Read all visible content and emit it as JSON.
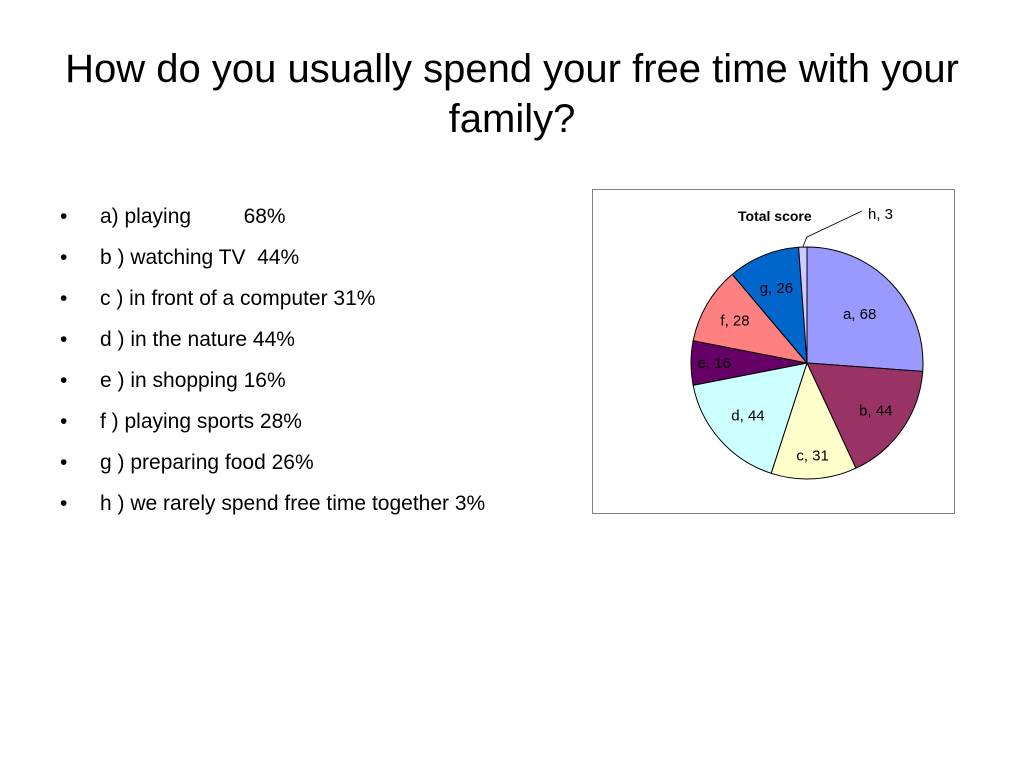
{
  "slide": {
    "title": "How do you usually spend your free time with your family?",
    "bullets": [
      "a) playing         68%",
      "b ) watching TV  44%",
      "c ) in front of a computer 31%",
      "d ) in the nature 44%",
      "e ) in shopping 16%",
      "f ) playing sports 28%",
      "g ) preparing food 26%",
      "h ) we rarely spend free time together 3%"
    ],
    "bullet_glyph": "•"
  },
  "chart_data": {
    "type": "pie",
    "title": "Total score",
    "categories": [
      "a",
      "b",
      "c",
      "d",
      "e",
      "f",
      "g",
      "h"
    ],
    "values": [
      68,
      44,
      31,
      44,
      16,
      28,
      26,
      3
    ],
    "labels": [
      "a, 68",
      "b, 44",
      "c, 31",
      "d, 44",
      "e, 16",
      "f, 28",
      "g, 26",
      "h, 3"
    ],
    "colors": [
      "#9999ff",
      "#993366",
      "#ffffcc",
      "#ccffff",
      "#660066",
      "#ff8080",
      "#0066cc",
      "#ccccff"
    ],
    "legend": "none"
  }
}
